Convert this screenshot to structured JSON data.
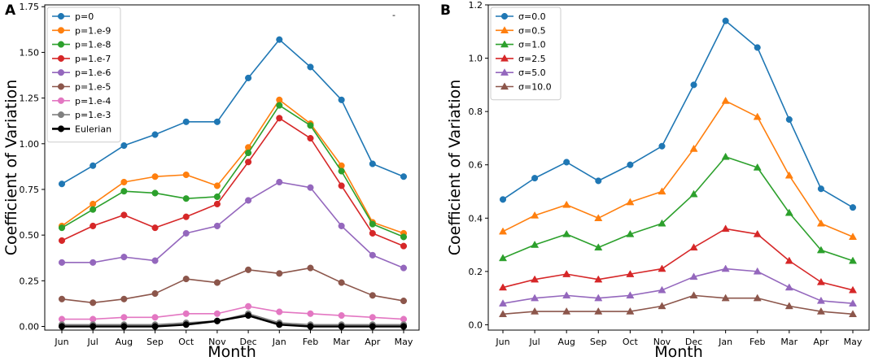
{
  "chart_data": [
    {
      "panel": "A",
      "type": "line",
      "marker": "circle",
      "categories": [
        "Jun",
        "Jul",
        "Aug",
        "Sep",
        "Oct",
        "Nov",
        "Dec",
        "Jan",
        "Feb",
        "Mar",
        "Apr",
        "May"
      ],
      "xlabel": "Month",
      "ylabel": "Coefficient of Variation",
      "ylim": [
        -0.02,
        1.76
      ],
      "yticks": [
        0.0,
        0.25,
        0.5,
        0.75,
        1.0,
        1.25,
        1.5,
        1.75
      ],
      "ytick_labels": [
        "0.00",
        "0.25",
        "0.50",
        "0.75",
        "1.00",
        "1.25",
        "1.50",
        "1.75"
      ],
      "legend": "top-left",
      "series": [
        {
          "name": "p=0",
          "color": "#1f77b4",
          "values": [
            0.78,
            0.88,
            0.99,
            1.05,
            1.12,
            1.12,
            1.36,
            1.57,
            1.42,
            1.24,
            0.89,
            0.82
          ]
        },
        {
          "name": "p=1.e-9",
          "color": "#ff7f0e",
          "values": [
            0.55,
            0.67,
            0.79,
            0.82,
            0.83,
            0.77,
            0.98,
            1.24,
            1.11,
            0.88,
            0.57,
            0.51
          ]
        },
        {
          "name": "p=1.e-8",
          "color": "#2ca02c",
          "values": [
            0.54,
            0.64,
            0.74,
            0.73,
            0.7,
            0.71,
            0.95,
            1.21,
            1.1,
            0.85,
            0.56,
            0.49
          ]
        },
        {
          "name": "p=1.e-7",
          "color": "#d62728",
          "values": [
            0.47,
            0.55,
            0.61,
            0.54,
            0.6,
            0.67,
            0.9,
            1.14,
            1.03,
            0.77,
            0.51,
            0.44
          ]
        },
        {
          "name": "p=1.e-6",
          "color": "#9467bd",
          "values": [
            0.35,
            0.35,
            0.38,
            0.36,
            0.51,
            0.55,
            0.69,
            0.79,
            0.76,
            0.55,
            0.39,
            0.32
          ]
        },
        {
          "name": "p=1.e-5",
          "color": "#8c564b",
          "values": [
            0.15,
            0.13,
            0.15,
            0.18,
            0.26,
            0.24,
            0.31,
            0.29,
            0.32,
            0.24,
            0.17,
            0.14
          ]
        },
        {
          "name": "p=1.e-4",
          "color": "#e377c2",
          "values": [
            0.04,
            0.04,
            0.05,
            0.05,
            0.07,
            0.07,
            0.11,
            0.08,
            0.07,
            0.06,
            0.05,
            0.04
          ]
        },
        {
          "name": "p=1.e-3",
          "color": "#7f7f7f",
          "values": [
            0.01,
            0.01,
            0.01,
            0.01,
            0.02,
            0.03,
            0.07,
            0.02,
            0.01,
            0.01,
            0.01,
            0.01
          ]
        },
        {
          "name": "Eulerian",
          "color": "#000000",
          "values": [
            0.0,
            0.0,
            0.0,
            0.0,
            0.01,
            0.03,
            0.06,
            0.01,
            0.0,
            0.0,
            0.0,
            0.0
          ]
        }
      ],
      "annotation": "-"
    },
    {
      "panel": "B",
      "type": "line",
      "marker": "triangle",
      "categories": [
        "Jun",
        "Jul",
        "Aug",
        "Sep",
        "Oct",
        "Nov",
        "Dec",
        "Jan",
        "Feb",
        "Mar",
        "Apr",
        "May"
      ],
      "xlabel": "Month",
      "ylabel": "Coefficient of Variation",
      "ylim": [
        -0.02,
        1.2
      ],
      "yticks": [
        0.0,
        0.2,
        0.4,
        0.6,
        0.8,
        1.0,
        1.2
      ],
      "ytick_labels": [
        "0.0",
        "0.2",
        "0.4",
        "0.6",
        "0.8",
        "1.0",
        "1.2"
      ],
      "legend": "top-left",
      "series": [
        {
          "name": "σ=0.0",
          "color": "#1f77b4",
          "marker": "circle",
          "values": [
            0.47,
            0.55,
            0.61,
            0.54,
            0.6,
            0.67,
            0.9,
            1.14,
            1.04,
            0.77,
            0.51,
            0.44
          ]
        },
        {
          "name": "σ=0.5",
          "color": "#ff7f0e",
          "marker": "triangle",
          "values": [
            0.35,
            0.41,
            0.45,
            0.4,
            0.46,
            0.5,
            0.66,
            0.84,
            0.78,
            0.56,
            0.38,
            0.33
          ]
        },
        {
          "name": "σ=1.0",
          "color": "#2ca02c",
          "marker": "triangle",
          "values": [
            0.25,
            0.3,
            0.34,
            0.29,
            0.34,
            0.38,
            0.49,
            0.63,
            0.59,
            0.42,
            0.28,
            0.24
          ]
        },
        {
          "name": "σ=2.5",
          "color": "#d62728",
          "marker": "triangle",
          "values": [
            0.14,
            0.17,
            0.19,
            0.17,
            0.19,
            0.21,
            0.29,
            0.36,
            0.34,
            0.24,
            0.16,
            0.13
          ]
        },
        {
          "name": "σ=5.0",
          "color": "#9467bd",
          "marker": "triangle",
          "values": [
            0.08,
            0.1,
            0.11,
            0.1,
            0.11,
            0.13,
            0.18,
            0.21,
            0.2,
            0.14,
            0.09,
            0.08
          ]
        },
        {
          "name": "σ=10.0",
          "color": "#8c564b",
          "marker": "triangle",
          "values": [
            0.04,
            0.05,
            0.05,
            0.05,
            0.05,
            0.07,
            0.11,
            0.1,
            0.1,
            0.07,
            0.05,
            0.04
          ]
        }
      ]
    }
  ]
}
